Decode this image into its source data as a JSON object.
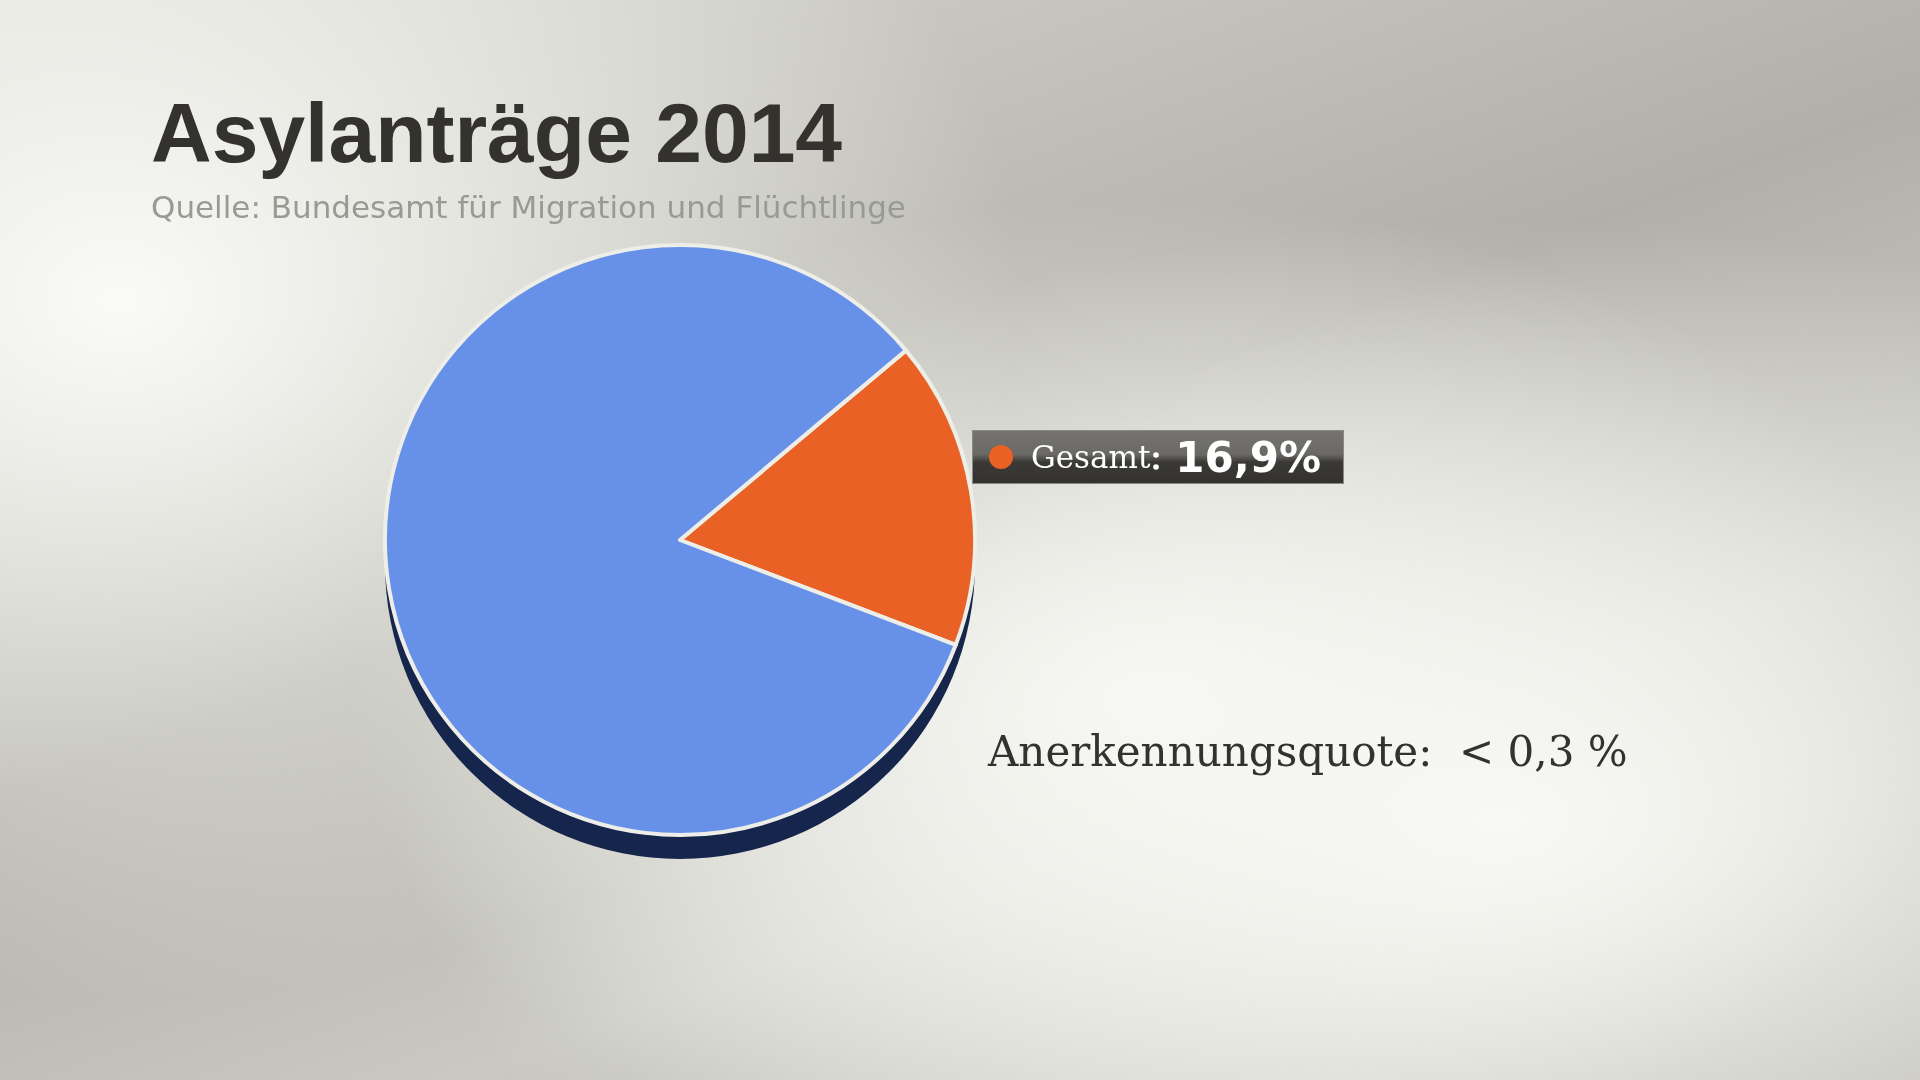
{
  "chart_data": {
    "type": "pie",
    "title": "Asylanträge 2014",
    "subtitle": "Quelle: Bundesamt für Migration und Flüchtlinge",
    "categories": [
      "Gesamt",
      null
    ],
    "values": [
      16.9,
      83.1
    ],
    "colors": [
      "#e96125",
      "#6791e9"
    ],
    "value_labels": [
      "16,9%",
      null
    ],
    "annotations": [
      "Anerkennungsquote:  < 0,3 %"
    ]
  }
}
